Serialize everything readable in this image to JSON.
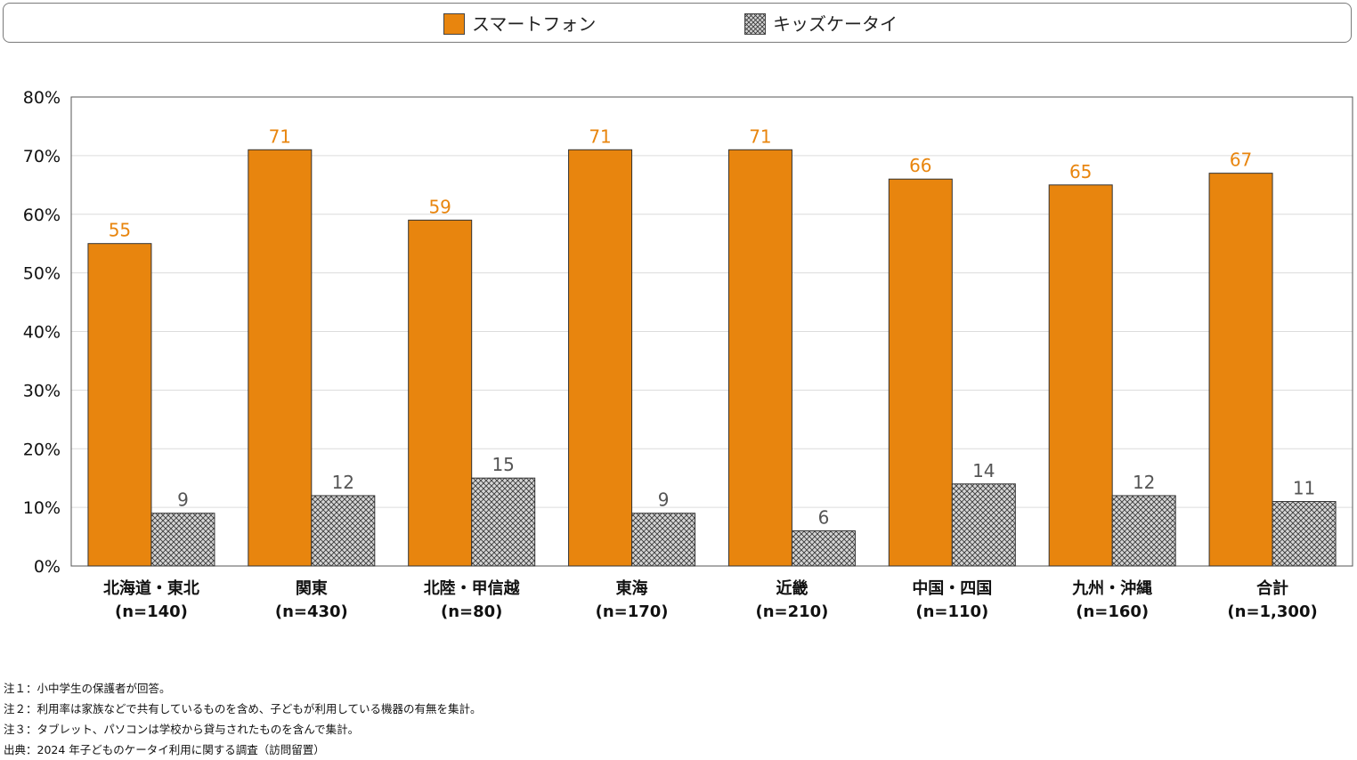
{
  "chart_data": {
    "type": "bar",
    "title": "",
    "xlabel": "",
    "ylabel": "",
    "ylim": [
      0,
      80
    ],
    "yticks": [
      0,
      10,
      20,
      30,
      40,
      50,
      60,
      70,
      80
    ],
    "ytick_labels": [
      "0%",
      "10%",
      "20%",
      "30%",
      "40%",
      "50%",
      "60%",
      "70%",
      "80%"
    ],
    "categories": [
      "北海道・東北",
      "関東",
      "北陸・甲信越",
      "東海",
      "近畿",
      "中国・四国",
      "九州・沖縄",
      "合計"
    ],
    "category_counts": [
      "(n=140)",
      "(n=430)",
      "(n=80)",
      "(n=170)",
      "(n=210)",
      "(n=110)",
      "(n=160)",
      "(n=1,300)"
    ],
    "series": [
      {
        "name": "スマートフォン",
        "values": [
          55,
          71,
          59,
          71,
          71,
          66,
          65,
          67
        ],
        "color": "#e8850e",
        "label_color": "#e8850e"
      },
      {
        "name": "キッズケータイ",
        "values": [
          9,
          12,
          15,
          9,
          6,
          14,
          12,
          11
        ],
        "color": "#cccccc",
        "pattern": "crosshatch",
        "label_color": "#555555"
      }
    ],
    "legend": "top",
    "grid": true
  },
  "notes": [
    "注１：小中学生の保護者が回答。",
    "注２：利用率は家族などで共有しているものを含め、子どもが利用している機器の有無を集計。",
    "注３：タブレット、パソコンは学校から貸与されたものを含んで集計。",
    "出典：2024 年子どものケータイ利用に関する調査（訪問留置）"
  ]
}
